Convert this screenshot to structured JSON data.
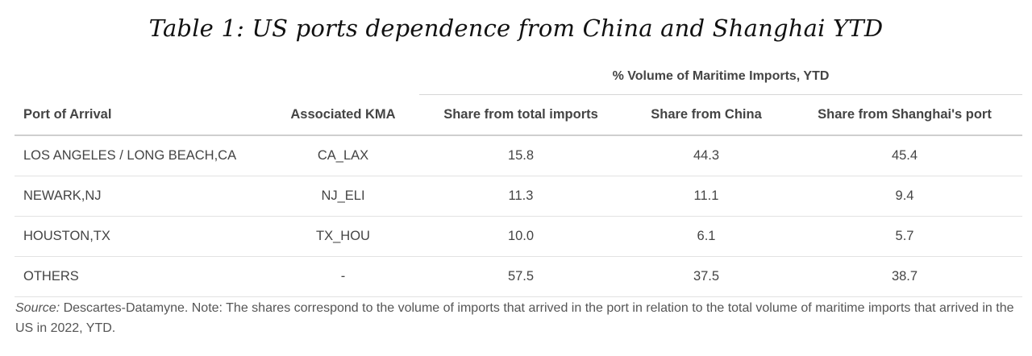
{
  "chart_data": {
    "type": "table",
    "title": "Table 1: US ports dependence from China and Shanghai YTD",
    "column_group": "% Volume of Maritime Imports, YTD",
    "columns": [
      "Port of Arrival",
      "Associated KMA",
      "Share from total imports",
      "Share from China",
      "Share from Shanghai's port"
    ],
    "rows": [
      [
        "LOS ANGELES / LONG BEACH,CA",
        "CA_LAX",
        "15.8",
        "44.3",
        "45.4"
      ],
      [
        "NEWARK,NJ",
        "NJ_ELI",
        "11.3",
        "11.1",
        "9.4"
      ],
      [
        "HOUSTON,TX",
        "TX_HOU",
        "10.0",
        "6.1",
        "5.7"
      ],
      [
        "OTHERS",
        "-",
        "57.5",
        "37.5",
        "38.7"
      ]
    ]
  },
  "footnote": {
    "source_label": "Source:",
    "text": " Descartes-Datamyne. Note: The shares correspond to the volume of imports that arrived in the port in relation to the total volume of maritime imports that arrived in the US in 2022, YTD."
  }
}
